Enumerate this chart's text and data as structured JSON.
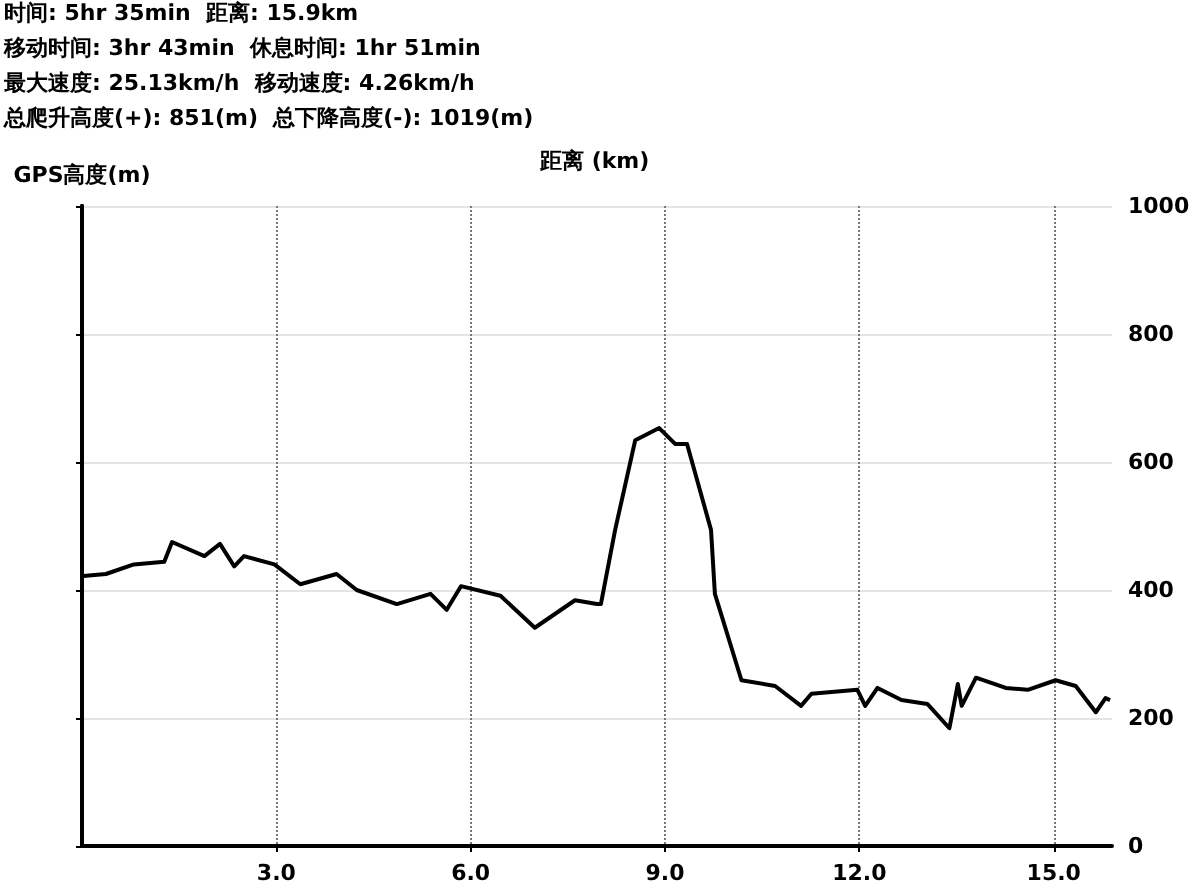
{
  "chart_data": {
    "type": "line",
    "xlabel": "距离 (km)",
    "ylabel": "GPS高度(m)",
    "annotations": [
      "时间: 5hr 35min  距离: 15.9km",
      "移动时间: 3hr 43min  休息时间: 1hr 51min",
      "最大速度: 25.13km/h  移动速度: 4.26km/h",
      "总爬升高度(+): 851(m)  总下降高度(-): 1019(m)"
    ],
    "series": [
      {
        "color": "#000000",
        "x": [
          0.02,
          0.37,
          0.8,
          1.27,
          1.39,
          1.89,
          2.13,
          2.35,
          2.5,
          2.97,
          3.37,
          3.93,
          4.24,
          4.86,
          5.38,
          5.63,
          5.85,
          6.46,
          6.99,
          7.61,
          7.95,
          8.01,
          8.23,
          8.54,
          8.91,
          9.16,
          9.34,
          9.71,
          9.77,
          10.18,
          10.7,
          11.1,
          11.26,
          11.97,
          12.09,
          12.28,
          12.65,
          13.05,
          13.39,
          13.52,
          13.58,
          13.8,
          14.26,
          14.6,
          15.03,
          15.34,
          15.65,
          15.8,
          15.87
        ],
        "values": [
          422,
          425,
          440,
          444,
          475,
          453,
          472,
          437,
          453,
          440,
          409,
          425,
          400,
          378,
          394,
          369,
          406,
          391,
          341,
          384,
          378,
          378,
          494,
          634,
          653,
          628,
          628,
          494,
          394,
          259,
          250,
          219,
          238,
          244,
          219,
          247,
          228,
          222,
          184,
          253,
          219,
          263,
          247,
          244,
          259,
          250,
          209,
          231,
          228
        ]
      }
    ],
    "xlim": [
      0,
      15.9
    ],
    "xticks": [
      {
        "value": 3,
        "label": "3.0"
      },
      {
        "value": 6,
        "label": "6.0"
      },
      {
        "value": 9,
        "label": "9.0"
      },
      {
        "value": 12,
        "label": "12.0"
      },
      {
        "value": 15,
        "label": "15.0"
      }
    ],
    "ylim": [
      0,
      1000
    ],
    "yticks": [
      0,
      200,
      400,
      600,
      800,
      1000
    ],
    "grid": true,
    "marker": "none",
    "line_style": "solid"
  }
}
